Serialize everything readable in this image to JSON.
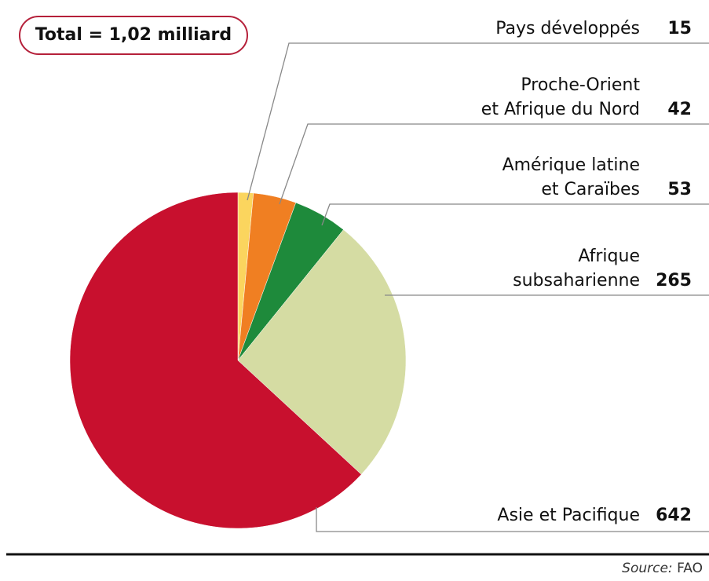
{
  "chart_data": {
    "type": "pie",
    "title": "Total = 1,02 milliard",
    "categories": [
      "Pays développés",
      "Proche-Orient\net Afrique du Nord",
      "Amérique latine\net Caraïbes",
      "Afrique\nsubsaharienne",
      "Asie et Pacifique"
    ],
    "values": [
      15,
      42,
      53,
      265,
      642
    ],
    "colors": [
      "#fbd55e",
      "#f07f22",
      "#1e8a3b",
      "#d5dca3",
      "#c8102e"
    ],
    "source_label": "Source:",
    "source": "FAO"
  }
}
